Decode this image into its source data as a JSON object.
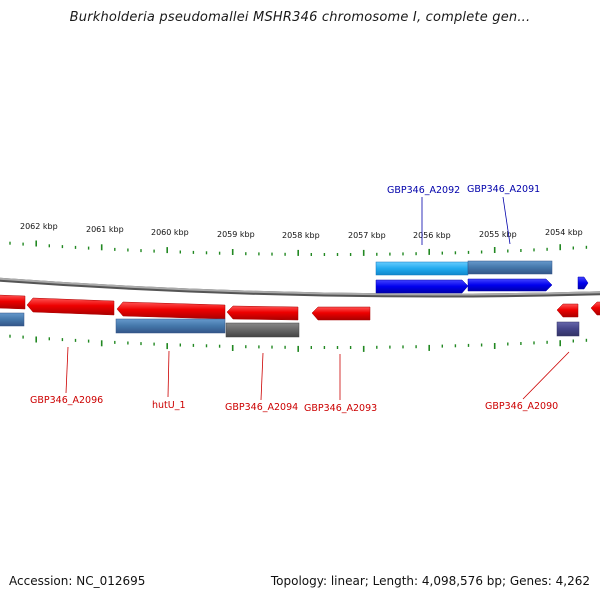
{
  "header": {
    "title": "Burkholderia pseudomallei MSHR346 chromosome I, complete gen..."
  },
  "footer": {
    "accession": "Accession: NC_012695",
    "summary": "Topology: linear; Length: 4,098,576 bp; Genes: 4,262"
  },
  "ruler": {
    "unit": "kbp",
    "tick_labels": [
      "2062 kbp",
      "2061 kbp",
      "2060 kbp",
      "2059 kbp",
      "2058 kbp",
      "2057 kbp",
      "2056 kbp",
      "2055 kbp",
      "2054 kbp"
    ]
  },
  "colors": {
    "reverse_gene": "#ee1111",
    "forward_gene": "#1111ee",
    "cds_forward": "#22aaee",
    "cds_blue": "#4477aa",
    "cds_gray": "#666666",
    "cds_purple": "#444488",
    "tick": "#228822",
    "backbone": "#888888"
  },
  "gene_labels": {
    "forward": [
      "GBP346_A2092",
      "GBP346_A2091"
    ],
    "reverse": [
      "GBP346_A2096",
      "hutU_1",
      "GBP346_A2094",
      "GBP346_A2093",
      "GBP346_A2090"
    ]
  }
}
